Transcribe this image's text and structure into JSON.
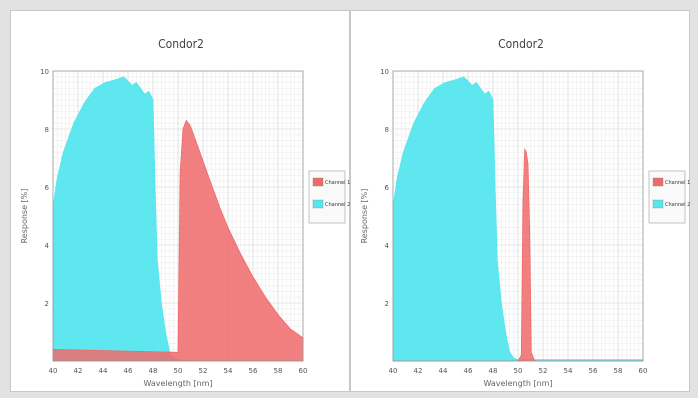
{
  "chart_data": [
    {
      "type": "area",
      "title": "Condor2",
      "xlabel": "Wavelength [nm]",
      "ylabel": "Response [%]",
      "xlim": [
        400,
        1000
      ],
      "ylim": [
        0,
        10
      ],
      "xticks": [
        "40",
        "42",
        "44",
        "46",
        "48",
        "50",
        "52",
        "54",
        "56",
        "58",
        "60"
      ],
      "yticks": [
        "2",
        "4",
        "6",
        "8",
        "10"
      ],
      "grid": true,
      "legend_position": "right",
      "series": [
        {
          "name": "Channel 1",
          "color": "#f06a6a",
          "x": [
            400,
            700,
            705,
            712,
            720,
            730,
            740,
            760,
            780,
            800,
            820,
            850,
            880,
            910,
            940,
            970,
            1000
          ],
          "y": [
            0.4,
            0.3,
            6.5,
            8.0,
            8.3,
            8.1,
            7.7,
            6.9,
            6.1,
            5.3,
            4.6,
            3.7,
            2.9,
            2.2,
            1.6,
            1.1,
            0.8
          ]
        },
        {
          "name": "Channel 2",
          "color": "#56e6ee",
          "x": [
            400,
            410,
            425,
            450,
            475,
            500,
            525,
            550,
            570,
            590,
            600,
            620,
            630,
            640,
            645,
            650,
            660,
            670,
            680,
            690,
            700,
            720,
            760,
            800,
            850,
            900,
            950,
            1000
          ],
          "y": [
            5.3,
            6.3,
            7.2,
            8.2,
            8.9,
            9.4,
            9.6,
            9.7,
            9.8,
            9.5,
            9.6,
            9.2,
            9.3,
            9.0,
            6.0,
            3.5,
            2.0,
            1.0,
            0.3,
            0.1,
            0.05,
            0.02,
            0.01,
            0.01,
            0.01,
            0.01,
            0.01,
            0.01
          ]
        }
      ]
    },
    {
      "type": "area",
      "title": "Condor2",
      "xlabel": "Wavelength [nm]",
      "ylabel": "Response [%]",
      "xlim": [
        400,
        1000
      ],
      "ylim": [
        0,
        10
      ],
      "xticks": [
        "40",
        "42",
        "44",
        "46",
        "48",
        "50",
        "52",
        "54",
        "56",
        "58",
        "60"
      ],
      "yticks": [
        "2",
        "4",
        "6",
        "8",
        "10"
      ],
      "grid": true,
      "legend_position": "right",
      "series": [
        {
          "name": "Channel 1",
          "color": "#f06a6a",
          "x": [
            400,
            700,
            708,
            712,
            716,
            720,
            724,
            728,
            732,
            740,
            1000
          ],
          "y": [
            0,
            0,
            0.2,
            5.5,
            7.3,
            7.2,
            6.8,
            4.5,
            0.3,
            0,
            0
          ]
        },
        {
          "name": "Channel 2",
          "color": "#56e6ee",
          "x": [
            400,
            410,
            425,
            450,
            475,
            500,
            525,
            550,
            570,
            590,
            600,
            620,
            630,
            640,
            645,
            650,
            660,
            670,
            680,
            690,
            700,
            720,
            760,
            800,
            850,
            900,
            950,
            1000
          ],
          "y": [
            5.3,
            6.3,
            7.2,
            8.2,
            8.9,
            9.4,
            9.6,
            9.7,
            9.8,
            9.5,
            9.6,
            9.2,
            9.3,
            9.0,
            6.0,
            3.5,
            2.0,
            1.0,
            0.3,
            0.1,
            0.05,
            0.05,
            0.05,
            0.05,
            0.05,
            0.05,
            0.05,
            0.05
          ]
        }
      ]
    }
  ]
}
